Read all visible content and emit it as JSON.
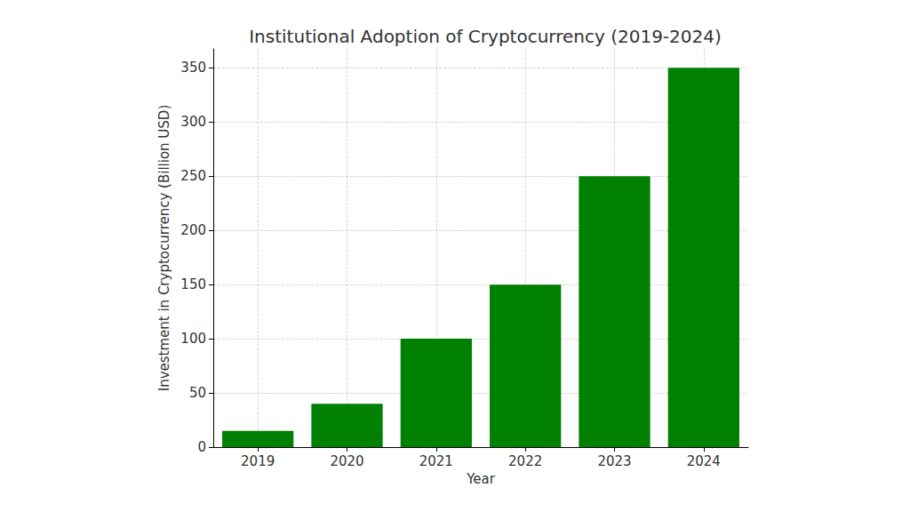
{
  "chart_data": {
    "type": "bar",
    "title": "Institutional Adoption of Cryptocurrency (2019-2024)",
    "x_label": "Year",
    "y_label": "Investment in Cryptocurrency (Billion USD)",
    "categories": [
      "2019",
      "2020",
      "2021",
      "2022",
      "2023",
      "2024"
    ],
    "values": [
      15,
      40,
      100,
      150,
      250,
      350
    ],
    "color": "#008000",
    "ylim": [
      0,
      367.5
    ],
    "yticks": [
      0,
      50,
      100,
      150,
      200,
      250,
      300,
      350
    ],
    "grid": true
  }
}
